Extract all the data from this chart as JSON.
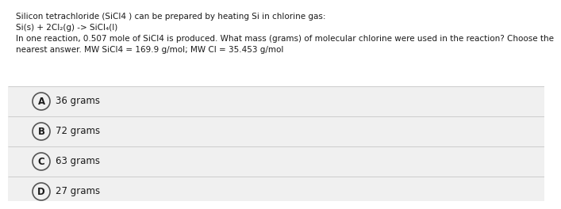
{
  "title_line1": "Silicon tetrachloride (SiCl4 ) can be prepared by heating Si in chlorine gas:",
  "title_line2": "Si(s) + 2Cl₂(g) -> SiCl₄(l)",
  "title_line3": "In one reaction, 0.507 mole of SiCl4 is produced. What mass (grams) of molecular chlorine were used in the reaction? Choose the",
  "title_line4": "nearest answer. MW SiCl4 = 169.9 g/mol; MW Cl = 35.453 g/mol",
  "options": [
    {
      "label": "A",
      "text": "36 grams"
    },
    {
      "label": "B",
      "text": "72 grams"
    },
    {
      "label": "C",
      "text": "63 grams"
    },
    {
      "label": "D",
      "text": "27 grams"
    }
  ],
  "bg_color": "#ffffff",
  "option_bg_color": "#f0f0f0",
  "option_border_color": "#cccccc",
  "text_color": "#1a1a1a",
  "circle_edge_color": "#555555",
  "font_size_text": 7.5,
  "font_size_option": 8.5,
  "font_size_label": 8.5
}
